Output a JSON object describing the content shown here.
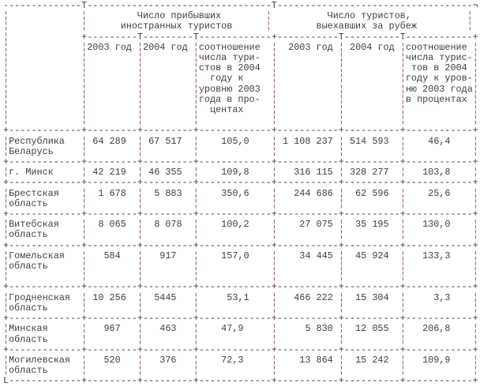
{
  "colors": {
    "text": "#3f3f3f",
    "vertical_bar": "#8f5272",
    "background": "#ffffff"
  },
  "table": {
    "column_groups": [
      {
        "title": "Число прибывших иностранных туристов"
      },
      {
        "title": "Число туристов, выехавших за рубеж"
      }
    ],
    "columns": [
      "2003 год",
      "2004 год",
      "соотношение числа туристов в 2004 году к уровню 2003 года в процентах",
      "2003 год",
      "2004 год",
      "соотношение числа туристов в 2004 году к уровню 2003 года в процентах"
    ],
    "rows": [
      {
        "region": "Республика Беларусь",
        "arrived_2003": "64 289",
        "arrived_2004": "67 517",
        "arrived_ratio_pct": "105,0",
        "departed_2003": "1 108 237",
        "departed_2004": "514 593",
        "departed_ratio_pct": "46,4"
      },
      {
        "region": "г. Минск",
        "arrived_2003": "42 219",
        "arrived_2004": "46 355",
        "arrived_ratio_pct": "109,8",
        "departed_2003": "316 115",
        "departed_2004": "328 277",
        "departed_ratio_pct": "103,8"
      },
      {
        "region": "Брестская область",
        "arrived_2003": "1 678",
        "arrived_2004": "5 883",
        "arrived_ratio_pct": "350,6",
        "departed_2003": "244 686",
        "departed_2004": "62 596",
        "departed_ratio_pct": "25,6"
      },
      {
        "region": "Витебская область",
        "arrived_2003": "8 065",
        "arrived_2004": "8 078",
        "arrived_ratio_pct": "100,2",
        "departed_2003": "27 075",
        "departed_2004": "35 195",
        "departed_ratio_pct": "130,0"
      },
      {
        "region": "Гомельская область",
        "arrived_2003": "584",
        "arrived_2004": "917",
        "arrived_ratio_pct": "157,0",
        "departed_2003": "34 445",
        "departed_2004": "45 924",
        "departed_ratio_pct": "133,3"
      },
      {
        "region": "Гродненская область",
        "arrived_2003": "10 256",
        "arrived_2004": "5445",
        "arrived_ratio_pct": "53,1",
        "departed_2003": "466 222",
        "departed_2004": "15 304",
        "departed_ratio_pct": "3,3"
      },
      {
        "region": "Минская область",
        "arrived_2003": "967",
        "arrived_2004": "463",
        "arrived_ratio_pct": "47,9",
        "departed_2003": "5 830",
        "departed_2004": "12 055",
        "departed_ratio_pct": "206,8"
      },
      {
        "region": "Могилевская область",
        "arrived_2003": "520",
        "arrived_2004": "376",
        "arrived_ratio_pct": "72,3",
        "departed_2003": "13 864",
        "departed_2004": "15 242",
        "departed_ratio_pct": "109,9"
      }
    ]
  },
  "ascii_render": {
    "lines": [
      "--------------T---------------------------------T-----------------------------------¬",
      "¦             ¦         Число прибывших        ¦          Число туристов,          ¦",
      "¦             ¦      иностранных туристов      ¦        выехавших за рубеж         ¦",
      "¦             +---------T---------T-------------+-----------T----------T------------+",
      "¦             ¦2003 год ¦2004 год ¦соотношение  ¦  2003 год ¦ 2004 год ¦соотношение ¦",
      "¦             ¦         ¦         ¦числа тури-  ¦           ¦          ¦числа турис-¦",
      "¦             ¦         ¦         ¦стов в 2004  ¦           ¦          ¦ тов в 2004 ¦",
      "¦             ¦         ¦         ¦  году к     ¦           ¦          ¦году к уров-¦",
      "¦             ¦         ¦         ¦уровню 2003  ¦           ¦          ¦ню 2003 года¦",
      "¦             ¦         ¦         ¦года в про-  ¦           ¦          ¦в процентах ¦",
      "¦             ¦         ¦         ¦  центах     ¦           ¦          ¦            ¦",
      "¦             ¦         ¦         ¦             ¦           ¦          ¦            ¦",
      "+-------------+---------+---------+-------------+-----------+----------+------------+",
      "¦Республика   ¦ 64 289  ¦ 67 517  ¦    105,0    ¦ 1 108 237 ¦ 514 593  ¦    46,4    ¦",
      "¦Беларусь     ¦         ¦         ¦             ¦           ¦          ¦            ¦",
      "+-------------+---------+---------+-------------+-----------+----------+------------+",
      "¦г. Минск     ¦ 42 219  ¦ 46 355  ¦    109,8    ¦   316 115 ¦ 328 277  ¦   103,8    ¦",
      "+-------------+---------+---------+-------------+-----------+----------+------------+",
      "¦Брестская    ¦  1 678  ¦  5 883  ¦    350,6    ¦   244 686 ¦  62 596  ¦    25,6    ¦",
      "¦область      ¦         ¦         ¦             ¦           ¦          ¦            ¦",
      "+-------------+---------+---------+-------------+-----------+----------+------------+",
      "¦Витебская    ¦  8 065  ¦  8 078  ¦    100,2    ¦    27 075 ¦  35 195  ¦   130,0    ¦",
      "¦область      ¦         ¦         ¦             ¦           ¦          ¦            ¦",
      "+-------------+---------+---------+-------------+-----------+----------+------------+",
      "¦Гомельская   ¦   584   ¦   917   ¦    157,0    ¦    34 445 ¦  45 924  ¦   133,3    ¦",
      "¦область      ¦         ¦         ¦             ¦           ¦          ¦            ¦",
      "¦             ¦         ¦         ¦             ¦           ¦          ¦            ¦",
      "+-------------+---------+---------+-------------+-----------+----------+------------+",
      "¦Гродненская  ¦ 10 256  ¦  5445   ¦     53,1    ¦   466 222 ¦  15 304  ¦     3,3    ¦",
      "¦область      ¦         ¦         ¦             ¦           ¦          ¦            ¦",
      "+-------------+---------+---------+-------------+-----------+----------+------------+",
      "¦Минская      ¦   967   ¦   463   ¦    47,9     ¦     5 830 ¦  12 055  ¦   206,8    ¦",
      "¦область      ¦         ¦         ¦             ¦           ¦          ¦            ¦",
      "+-------------+---------+---------+-------------+-----------+----------+------------+",
      "¦Могилевская  ¦   520   ¦   376   ¦    72,3     ¦    13 864 ¦  15 242  ¦   109,9    ¦",
      "¦область      ¦         ¦         ¦             ¦           ¦          ¦            ¦",
      "L-------------+---------+---------+-------------+-----------+----------+------------+"
    ]
  }
}
